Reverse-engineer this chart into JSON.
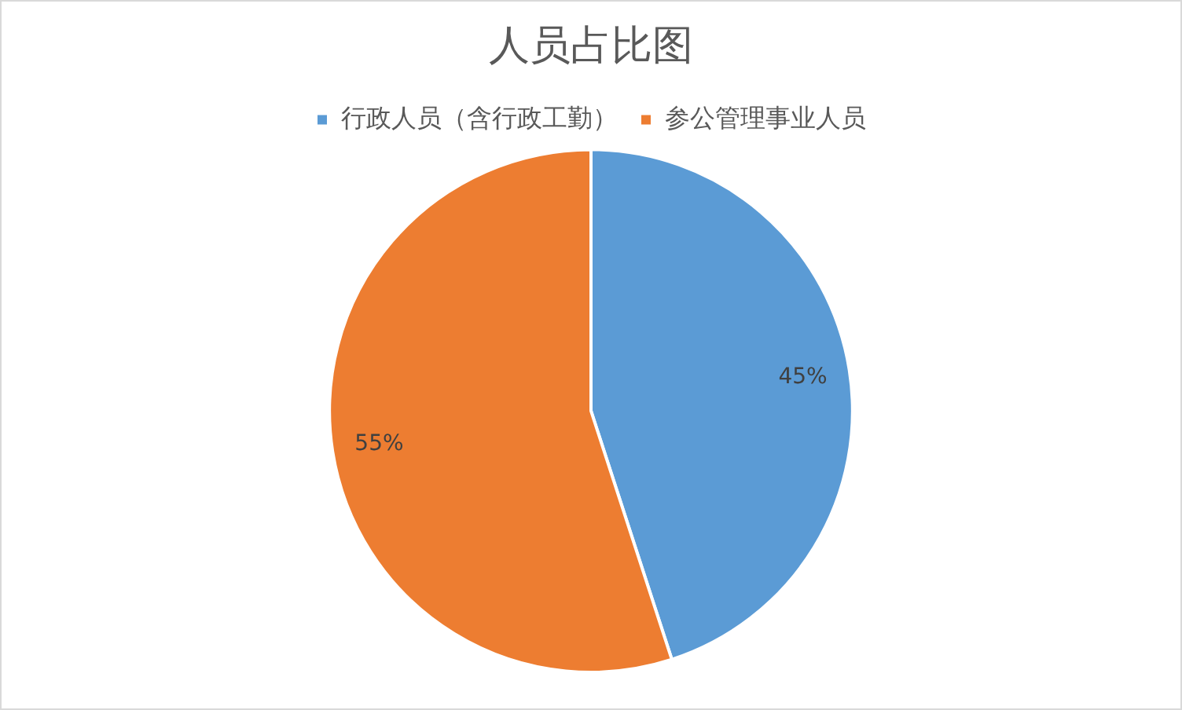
{
  "chart_data": {
    "type": "pie",
    "title": "人员占比图",
    "legend": "top",
    "categories": [
      "行政人员（含行政工勤）",
      "参公管理事业人员"
    ],
    "values": [
      45,
      55
    ],
    "colors": [
      "#5b9bd5",
      "#ed7d31"
    ],
    "value_labels": [
      "45%",
      "55%"
    ]
  }
}
